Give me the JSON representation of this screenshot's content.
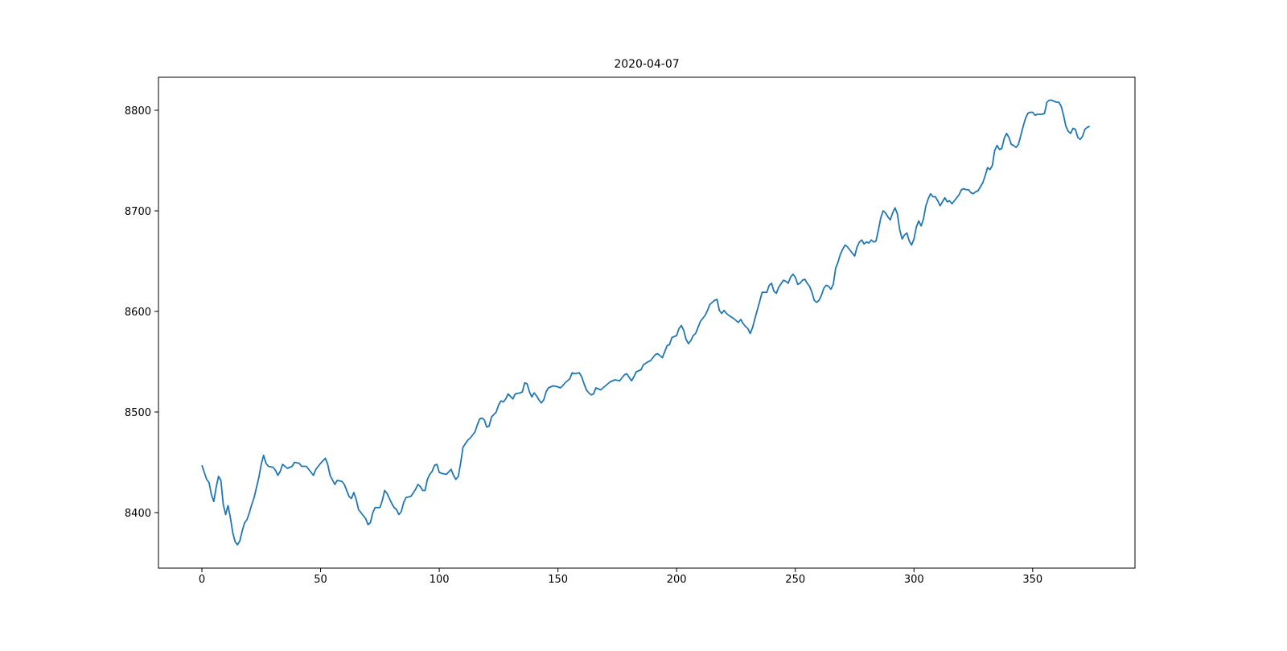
{
  "chart_data": {
    "type": "line",
    "title": "2020-04-07",
    "color": "#1f77b4",
    "xlim": [
      -18.3,
      393.1
    ],
    "ylim": [
      8344.8,
      8832.8
    ],
    "xticks": [
      0,
      50,
      100,
      150,
      200,
      250,
      300,
      350
    ],
    "yticks": [
      8400,
      8500,
      8600,
      8700,
      8800
    ],
    "x": [
      0,
      2,
      3,
      4,
      5,
      6,
      7,
      8,
      9,
      10,
      11,
      12,
      13,
      14,
      15,
      16,
      17,
      18,
      19,
      20,
      21,
      22,
      23,
      24,
      25,
      26,
      27,
      28,
      30,
      31,
      32,
      33,
      34,
      36,
      38,
      39,
      41,
      42,
      44,
      45,
      46,
      47,
      48,
      50,
      52,
      53,
      54,
      56,
      57,
      59,
      60,
      61,
      62,
      63,
      64,
      65,
      66,
      67,
      68,
      69,
      70,
      71,
      72,
      73,
      75,
      76,
      77,
      78,
      79,
      80,
      81,
      82,
      83,
      84,
      85,
      86,
      88,
      90,
      91,
      92,
      93,
      94,
      95,
      96,
      97,
      98,
      99,
      100,
      101,
      103,
      105,
      106,
      107,
      108,
      109,
      110,
      112,
      113,
      115,
      116,
      117,
      118,
      119,
      120,
      121,
      122,
      124,
      125,
      126,
      127,
      128,
      129,
      131,
      132,
      134,
      135,
      136,
      137,
      138,
      139,
      140,
      141,
      142,
      143,
      144,
      145,
      146,
      148,
      150,
      151,
      152,
      153,
      155,
      156,
      157,
      159,
      160,
      161,
      162,
      163,
      164,
      165,
      166,
      168,
      170,
      172,
      174,
      176,
      178,
      179,
      181,
      182,
      183,
      185,
      186,
      188,
      189,
      191,
      192,
      194,
      195,
      196,
      197,
      198,
      200,
      201,
      202,
      203,
      204,
      205,
      206,
      207,
      208,
      210,
      212,
      213,
      214,
      215,
      216,
      217,
      218,
      219,
      220,
      221,
      222,
      224,
      225,
      226,
      227,
      228,
      229,
      230,
      231,
      232,
      233,
      235,
      236,
      237,
      238,
      239,
      240,
      241,
      242,
      243,
      245,
      246,
      247,
      248,
      249,
      250,
      251,
      252,
      253,
      254,
      255,
      256,
      257,
      258,
      259,
      260,
      261,
      262,
      263,
      264,
      265,
      266,
      267,
      268,
      269,
      270,
      271,
      272,
      273,
      274,
      275,
      276,
      277,
      278,
      279,
      280,
      281,
      282,
      283,
      284,
      285,
      286,
      287,
      288,
      289,
      290,
      291,
      292,
      293,
      294,
      295,
      296,
      297,
      298,
      299,
      300,
      301,
      302,
      303,
      304,
      305,
      306,
      307,
      308,
      309,
      310,
      311,
      312,
      313,
      314,
      315,
      316,
      317,
      318,
      319,
      320,
      321,
      322,
      323,
      324,
      325,
      326,
      327,
      328,
      329,
      330,
      331,
      332,
      333,
      334,
      335,
      336,
      337,
      338,
      339,
      340,
      341,
      342,
      343,
      344,
      345,
      346,
      347,
      348,
      349,
      350,
      351,
      352,
      353,
      354,
      355,
      356,
      357,
      358,
      359,
      360,
      361,
      362,
      363,
      364,
      365,
      366,
      367,
      368,
      369,
      370,
      371,
      372,
      373,
      374
    ],
    "values": [
      8447,
      8433,
      8430,
      8418,
      8411,
      8425,
      8436,
      8432,
      8408,
      8398,
      8407,
      8395,
      8380,
      8371,
      8368,
      8372,
      8382,
      8390,
      8393,
      8400,
      8408,
      8415,
      8425,
      8435,
      8448,
      8457,
      8449,
      8446,
      8445,
      8442,
      8437,
      8441,
      8448,
      8444,
      8446,
      8450,
      8449,
      8446,
      8446,
      8443,
      8440,
      8437,
      8443,
      8449,
      8454,
      8448,
      8437,
      8428,
      8432,
      8431,
      8428,
      8422,
      8416,
      8414,
      8420,
      8413,
      8403,
      8400,
      8397,
      8394,
      8388,
      8390,
      8400,
      8405,
      8405,
      8412,
      8422,
      8419,
      8414,
      8409,
      8405,
      8403,
      8398,
      8401,
      8410,
      8415,
      8416,
      8423,
      8428,
      8426,
      8422,
      8422,
      8433,
      8438,
      8441,
      8447,
      8448,
      8440,
      8439,
      8438,
      8443,
      8437,
      8433,
      8436,
      8449,
      8465,
      8472,
      8474,
      8480,
      8487,
      8493,
      8494,
      8492,
      8485,
      8486,
      8495,
      8500,
      8507,
      8511,
      8510,
      8513,
      8518,
      8513,
      8518,
      8519,
      8520,
      8529,
      8528,
      8520,
      8515,
      8519,
      8516,
      8512,
      8509,
      8512,
      8520,
      8524,
      8526,
      8525,
      8524,
      8526,
      8529,
      8533,
      8539,
      8538,
      8539,
      8535,
      8528,
      8522,
      8519,
      8517,
      8518,
      8524,
      8522,
      8526,
      8530,
      8532,
      8531,
      8537,
      8538,
      8531,
      8535,
      8540,
      8542,
      8547,
      8550,
      8551,
      8557,
      8558,
      8554,
      8560,
      8566,
      8567,
      8574,
      8576,
      8583,
      8586,
      8581,
      8572,
      8568,
      8571,
      8576,
      8578,
      8590,
      8596,
      8601,
      8607,
      8609,
      8611,
      8612,
      8601,
      8598,
      8601,
      8598,
      8596,
      8593,
      8591,
      8589,
      8592,
      8588,
      8585,
      8583,
      8578,
      8584,
      8593,
      8610,
      8619,
      8619,
      8619,
      8626,
      8628,
      8620,
      8618,
      8624,
      8631,
      8630,
      8628,
      8634,
      8637,
      8634,
      8627,
      8628,
      8631,
      8632,
      8628,
      8625,
      8619,
      8611,
      8609,
      8611,
      8616,
      8623,
      8626,
      8625,
      8622,
      8627,
      8643,
      8649,
      8657,
      8662,
      8666,
      8664,
      8661,
      8658,
      8655,
      8664,
      8669,
      8671,
      8667,
      8669,
      8668,
      8671,
      8669,
      8670,
      8681,
      8693,
      8700,
      8698,
      8694,
      8691,
      8698,
      8703,
      8697,
      8681,
      8672,
      8676,
      8678,
      8670,
      8666,
      8672,
      8684,
      8690,
      8685,
      8692,
      8705,
      8712,
      8717,
      8714,
      8714,
      8710,
      8705,
      8709,
      8713,
      8709,
      8710,
      8707,
      8710,
      8713,
      8716,
      8721,
      8722,
      8721,
      8721,
      8718,
      8717,
      8719,
      8720,
      8724,
      8728,
      8735,
      8743,
      8741,
      8745,
      8760,
      8765,
      8761,
      8762,
      8772,
      8777,
      8773,
      8766,
      8765,
      8763,
      8766,
      8775,
      8784,
      8792,
      8797,
      8798,
      8798,
      8795,
      8796,
      8796,
      8796,
      8797,
      8808,
      8810,
      8810,
      8809,
      8808,
      8808,
      8804,
      8795,
      8784,
      8779,
      8777,
      8782,
      8781,
      8773,
      8771,
      8774,
      8781,
      8783,
      8784
    ]
  }
}
